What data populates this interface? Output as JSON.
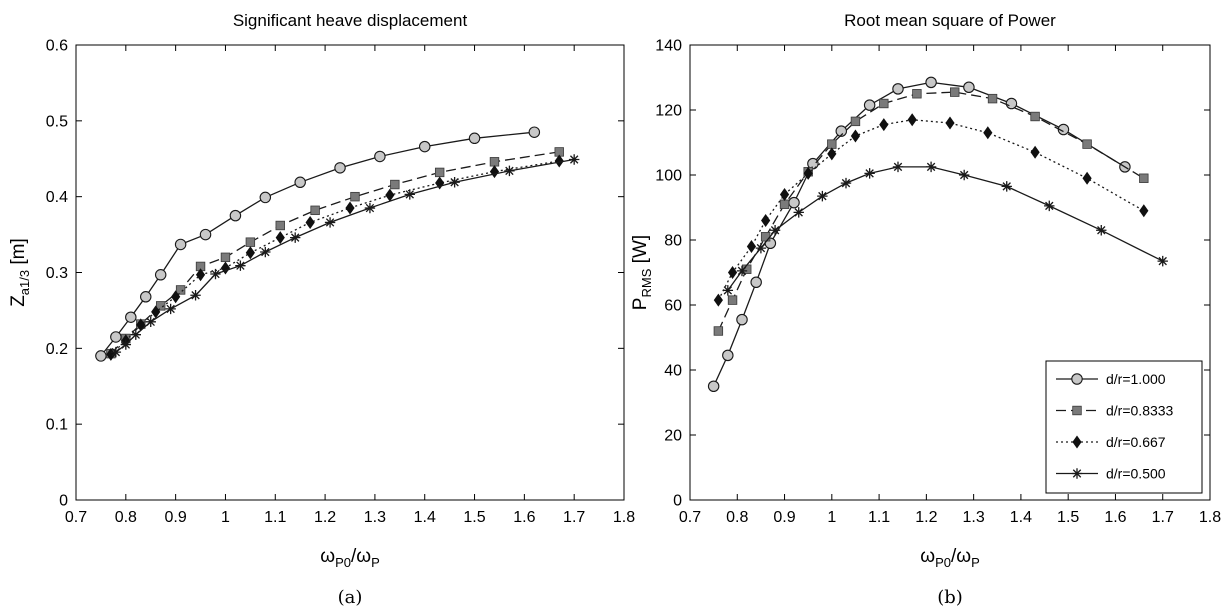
{
  "colors": {
    "axis": "#000000",
    "line": "#1a1a1a",
    "marker_circle": "#c8c8c8",
    "marker_square": "#7a7a7a",
    "marker_diamond": "#101010"
  },
  "legend": {
    "placement": "bottom-right of panel b",
    "entries": [
      "d/r=1.000",
      "d/r=0.8333",
      "d/r=0.667",
      "d/r=0.500"
    ]
  },
  "chart_data": [
    {
      "type": "line",
      "title": "Significant heave displacement",
      "caption": "(a)",
      "xlabel": {
        "main": "ω",
        "sub1": "P0",
        "mid": "/ω",
        "sub2": "P"
      },
      "ylabel": {
        "main": "Z",
        "sub": "a1/3",
        "unit": " [m]"
      },
      "xlim": [
        0.7,
        1.8
      ],
      "ylim": [
        0,
        0.6
      ],
      "xticks": [
        "0.7",
        "0.8",
        "0.9",
        "1",
        "1.1",
        "1.2",
        "1.3",
        "1.4",
        "1.5",
        "1.6",
        "1.7",
        "1.8"
      ],
      "yticks": [
        "0",
        "0.1",
        "0.2",
        "0.3",
        "0.4",
        "0.5",
        "0.6"
      ],
      "grid": false,
      "series": [
        {
          "name": "d/r=1.000",
          "marker": "circle",
          "dash": "solid",
          "x": [
            0.75,
            0.78,
            0.81,
            0.84,
            0.87,
            0.91,
            0.96,
            1.02,
            1.08,
            1.15,
            1.23,
            1.31,
            1.4,
            1.5,
            1.62
          ],
          "y": [
            0.19,
            0.215,
            0.241,
            0.268,
            0.297,
            0.337,
            0.35,
            0.375,
            0.399,
            0.419,
            0.438,
            0.453,
            0.466,
            0.477,
            0.485
          ]
        },
        {
          "name": "d/r=0.8333",
          "marker": "square",
          "dash": "dashed",
          "x": [
            0.77,
            0.8,
            0.83,
            0.87,
            0.91,
            0.95,
            1.0,
            1.05,
            1.11,
            1.18,
            1.26,
            1.34,
            1.43,
            1.54,
            1.67
          ],
          "y": [
            0.193,
            0.213,
            0.232,
            0.256,
            0.277,
            0.308,
            0.32,
            0.34,
            0.362,
            0.382,
            0.4,
            0.416,
            0.432,
            0.446,
            0.459
          ]
        },
        {
          "name": "d/r=0.667",
          "marker": "diamond",
          "dash": "dotted",
          "x": [
            0.77,
            0.8,
            0.83,
            0.86,
            0.9,
            0.95,
            1.0,
            1.05,
            1.11,
            1.17,
            1.25,
            1.33,
            1.43,
            1.54,
            1.67
          ],
          "y": [
            0.192,
            0.21,
            0.231,
            0.248,
            0.268,
            0.297,
            0.306,
            0.326,
            0.346,
            0.366,
            0.385,
            0.402,
            0.418,
            0.433,
            0.447
          ]
        },
        {
          "name": "d/r=0.500",
          "marker": "star",
          "dash": "solid",
          "x": [
            0.78,
            0.8,
            0.82,
            0.85,
            0.89,
            0.94,
            0.98,
            1.03,
            1.08,
            1.14,
            1.21,
            1.29,
            1.37,
            1.46,
            1.57,
            1.7
          ],
          "y": [
            0.195,
            0.205,
            0.218,
            0.235,
            0.252,
            0.27,
            0.298,
            0.309,
            0.327,
            0.346,
            0.366,
            0.385,
            0.403,
            0.419,
            0.434,
            0.449
          ]
        }
      ]
    },
    {
      "type": "line",
      "title": "Root mean square of Power",
      "caption": "(b)",
      "xlabel": {
        "main": "ω",
        "sub1": "P0",
        "mid": "/ω",
        "sub2": "P"
      },
      "ylabel": {
        "main": "P",
        "sub": "RMS",
        "unit": " [W]"
      },
      "xlim": [
        0.7,
        1.8
      ],
      "ylim": [
        0,
        140
      ],
      "xticks": [
        "0.7",
        "0.8",
        "0.9",
        "1",
        "1.1",
        "1.2",
        "1.3",
        "1.4",
        "1.5",
        "1.6",
        "1.7",
        "1.8"
      ],
      "yticks": [
        "0",
        "20",
        "40",
        "60",
        "80",
        "100",
        "120",
        "140"
      ],
      "grid": false,
      "series": [
        {
          "name": "d/r=1.000",
          "marker": "circle",
          "dash": "solid",
          "x": [
            0.75,
            0.78,
            0.81,
            0.84,
            0.87,
            0.92,
            0.96,
            1.02,
            1.08,
            1.14,
            1.21,
            1.29,
            1.38,
            1.49,
            1.62
          ],
          "y": [
            35,
            44.5,
            55.5,
            67,
            79,
            91.5,
            103.5,
            113.5,
            121.5,
            126.5,
            128.5,
            127,
            122,
            114,
            102.5
          ]
        },
        {
          "name": "d/r=0.8333",
          "marker": "square",
          "dash": "dashed",
          "x": [
            0.76,
            0.79,
            0.82,
            0.86,
            0.9,
            0.95,
            1.0,
            1.05,
            1.11,
            1.18,
            1.26,
            1.34,
            1.43,
            1.54,
            1.66
          ],
          "y": [
            52,
            61.5,
            71,
            81,
            91,
            101,
            109.5,
            116.5,
            122,
            125,
            125.5,
            123.5,
            118,
            109.5,
            99
          ]
        },
        {
          "name": "d/r=0.667",
          "marker": "diamond",
          "dash": "dotted",
          "x": [
            0.76,
            0.79,
            0.83,
            0.86,
            0.9,
            0.95,
            1.0,
            1.05,
            1.11,
            1.17,
            1.25,
            1.33,
            1.43,
            1.54,
            1.66
          ],
          "y": [
            61.5,
            70,
            78,
            86,
            94,
            100.5,
            106.5,
            112,
            115.5,
            117,
            116,
            113,
            107,
            99,
            89
          ]
        },
        {
          "name": "d/r=0.500",
          "marker": "star",
          "dash": "solid",
          "x": [
            0.78,
            0.81,
            0.85,
            0.88,
            0.93,
            0.98,
            1.03,
            1.08,
            1.14,
            1.21,
            1.28,
            1.37,
            1.46,
            1.57,
            1.7
          ],
          "y": [
            64.5,
            70.5,
            77.5,
            83,
            88.5,
            93.5,
            97.5,
            100.5,
            102.5,
            102.5,
            100,
            96.5,
            90.5,
            83,
            73.5
          ]
        }
      ]
    }
  ]
}
